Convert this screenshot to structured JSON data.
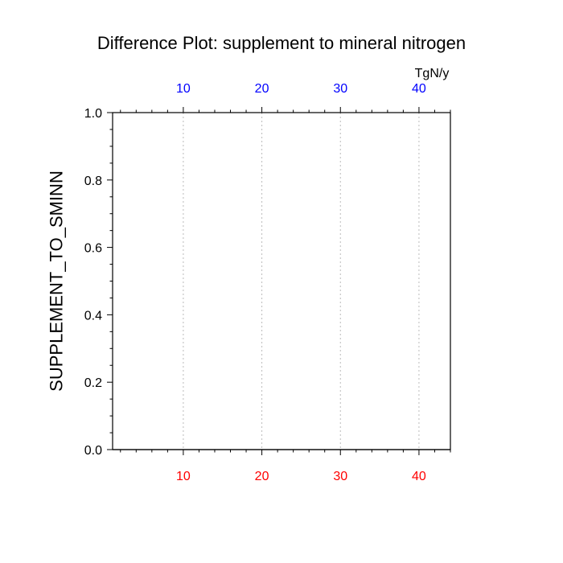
{
  "chart_data": {
    "type": "line",
    "title": "Difference Plot: supplement to mineral nitrogen",
    "ylabel": "SUPPLEMENT_TO_SMINN",
    "top_axis_units": "TgN/y",
    "xlim": [
      1,
      44
    ],
    "ylim": [
      0,
      1
    ],
    "bottom_xticks": [
      10,
      20,
      30,
      40
    ],
    "top_xticks": [
      10,
      20,
      30,
      40
    ],
    "bottom_xminor_step": 2,
    "top_xminor_step": 2,
    "yticks": [
      0.0,
      0.2,
      0.4,
      0.6,
      0.8,
      1.0
    ],
    "ytick_labels": [
      "0.0",
      "0.2",
      "0.4",
      "0.6",
      "0.8",
      "1.0"
    ],
    "yminor_step": 0.05,
    "vertical_dotted_grid": true,
    "series": [
      {
        "values": []
      }
    ],
    "colors": {
      "bottom_tick_labels": "#ff0000",
      "top_tick_labels": "#0000ff",
      "grid": "#bbbbbb",
      "frame": "#000000"
    }
  }
}
